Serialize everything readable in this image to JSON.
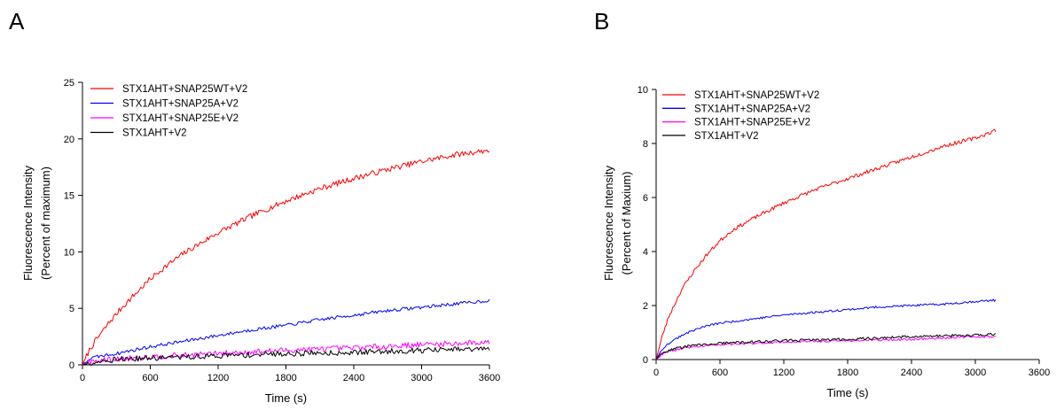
{
  "chart_data": [
    {
      "type": "line",
      "panel_label": "A",
      "xlabel": "Time (s)",
      "ylabel": [
        "Fluorescence Intensity",
        "(Percent of maximum)"
      ],
      "xlim": [
        0,
        3600
      ],
      "ylim": [
        0,
        25
      ],
      "xticks": [
        0,
        600,
        1200,
        1800,
        2400,
        3000,
        3600
      ],
      "yticks": [
        0,
        5,
        10,
        15,
        20,
        25
      ],
      "grid": false,
      "legend_position": "top-left",
      "series": [
        {
          "name": "STX1AHT+SNAP25WT+V2",
          "color": "#ff0000",
          "x": [
            0,
            60,
            120,
            240,
            360,
            480,
            600,
            720,
            900,
            1200,
            1500,
            1800,
            2100,
            2400,
            2700,
            3000,
            3300,
            3600
          ],
          "y": [
            0,
            1.3,
            2.2,
            3.8,
            5.2,
            6.4,
            7.6,
            8.6,
            9.9,
            11.7,
            13.2,
            14.5,
            15.6,
            16.5,
            17.3,
            18.0,
            18.6,
            19.0
          ],
          "noise": 0.25
        },
        {
          "name": "STX1AHT+SNAP25A+V2",
          "color": "#0000ff",
          "x": [
            0,
            60,
            120,
            300,
            600,
            900,
            1200,
            1500,
            1800,
            2100,
            2400,
            2700,
            3000,
            3300,
            3600
          ],
          "y": [
            0,
            0.5,
            0.7,
            1.0,
            1.6,
            2.1,
            2.6,
            3.1,
            3.5,
            4.0,
            4.4,
            4.8,
            5.1,
            5.4,
            5.7
          ],
          "noise": 0.15
        },
        {
          "name": "STX1AHT+SNAP25E+V2",
          "color": "#ff00ff",
          "x": [
            0,
            60,
            300,
            600,
            1200,
            1800,
            2400,
            3000,
            3600
          ],
          "y": [
            0,
            0.3,
            0.5,
            0.7,
            1.0,
            1.3,
            1.5,
            1.8,
            2.0
          ],
          "noise": 0.25
        },
        {
          "name": "STX1AHT+V2",
          "color": "#000000",
          "x": [
            0,
            60,
            300,
            600,
            1200,
            1800,
            2400,
            3000,
            3600
          ],
          "y": [
            0,
            0.2,
            0.5,
            0.6,
            0.8,
            1.0,
            1.1,
            1.3,
            1.4
          ],
          "noise": 0.25
        }
      ]
    },
    {
      "type": "line",
      "panel_label": "B",
      "xlabel": "Time (s)",
      "ylabel": [
        "Fluorescence Intensity",
        "(Percent of Maxium)"
      ],
      "xlim": [
        0,
        3600
      ],
      "ylim": [
        0,
        10
      ],
      "xticks": [
        0,
        600,
        1200,
        1800,
        2400,
        3000,
        3600
      ],
      "yticks": [
        0,
        2,
        4,
        6,
        8,
        10
      ],
      "grid": false,
      "legend_position": "top-left",
      "series": [
        {
          "name": "STX1AHT+SNAP25WT+V2",
          "color": "#ff0000",
          "x": [
            0,
            60,
            120,
            240,
            360,
            480,
            600,
            720,
            900,
            1200,
            1500,
            1800,
            2100,
            2400,
            2700,
            3000,
            3200
          ],
          "y": [
            0,
            0.9,
            1.6,
            2.6,
            3.3,
            3.9,
            4.4,
            4.8,
            5.2,
            5.8,
            6.3,
            6.7,
            7.1,
            7.5,
            7.9,
            8.2,
            8.5
          ],
          "noise": 0.07
        },
        {
          "name": "STX1AHT+SNAP25A+V2",
          "color": "#0000ff",
          "x": [
            0,
            60,
            120,
            240,
            360,
            480,
            600,
            900,
            1200,
            1500,
            1800,
            2100,
            2400,
            2700,
            3000,
            3200
          ],
          "y": [
            0,
            0.4,
            0.6,
            0.9,
            1.1,
            1.25,
            1.35,
            1.5,
            1.65,
            1.75,
            1.85,
            1.95,
            2.0,
            2.05,
            2.15,
            2.2
          ],
          "noise": 0.04
        },
        {
          "name": "STX1AHT+SNAP25E+V2",
          "color": "#ff00ff",
          "x": [
            0,
            60,
            120,
            300,
            600,
            900,
            1200,
            1800,
            2400,
            3000,
            3200
          ],
          "y": [
            0,
            0.2,
            0.3,
            0.45,
            0.55,
            0.6,
            0.65,
            0.7,
            0.75,
            0.85,
            0.85
          ],
          "noise": 0.04
        },
        {
          "name": "STX1AHT+V2",
          "color": "#000000",
          "x": [
            0,
            60,
            120,
            300,
            600,
            900,
            1200,
            1800,
            2400,
            3000,
            3200
          ],
          "y": [
            0,
            0.25,
            0.35,
            0.5,
            0.6,
            0.65,
            0.7,
            0.75,
            0.85,
            0.9,
            0.95
          ],
          "noise": 0.05
        }
      ]
    }
  ]
}
